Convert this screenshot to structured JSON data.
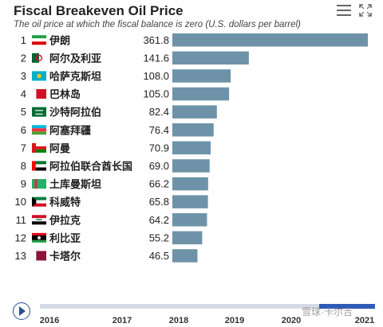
{
  "header": {
    "title": "Fiscal Breakeven Oil Price",
    "subtitle": "The oil price at which the fiscal balance is zero (U.S. dollars per barrel)"
  },
  "icons": {
    "menu": "hamburger-menu-icon",
    "expand": "fullscreen-expand-icon",
    "play": "play-icon"
  },
  "colors": {
    "bar": "#6e93a9",
    "accent": "#2f5bb8",
    "timeline_track": "#d5dbe6"
  },
  "timeline": {
    "years": [
      "2016",
      "2017",
      "2018",
      "2019",
      "2020",
      "2021"
    ],
    "selected_year": "2021"
  },
  "watermark": "雪球·卡尔吉",
  "chart_data": {
    "type": "bar",
    "orientation": "horizontal",
    "title": "Fiscal Breakeven Oil Price",
    "subtitle": "The oil price at which the fiscal balance is zero (U.S. dollars per barrel)",
    "ranks": [
      "1",
      "2",
      "3",
      "4",
      "5",
      "6",
      "7",
      "8",
      "9",
      "10",
      "11",
      "12",
      "13"
    ],
    "categories": [
      "伊朗",
      "阿尔及利亚",
      "哈萨克斯坦",
      "巴林岛",
      "沙特阿拉伯",
      "阿塞拜疆",
      "阿曼",
      "阿拉伯联合酋长国",
      "土库曼斯坦",
      "科威特",
      "伊拉克",
      "利比亚",
      "卡塔尔"
    ],
    "flags": [
      "iran-flag",
      "algeria-flag",
      "kazakhstan-flag",
      "bahrain-flag",
      "saudi-arabia-flag",
      "azerbaijan-flag",
      "oman-flag",
      "uae-flag",
      "turkmenistan-flag",
      "kuwait-flag",
      "iraq-flag",
      "libya-flag",
      "qatar-flag"
    ],
    "values": [
      361.8,
      141.6,
      108.0,
      105.0,
      82.4,
      76.4,
      70.9,
      69.0,
      66.2,
      65.8,
      64.2,
      55.2,
      46.5
    ],
    "value_labels": [
      "361.8",
      "141.6",
      "108.0",
      "105.0",
      "82.4",
      "76.4",
      "70.9",
      "69.0",
      "66.2",
      "65.8",
      "64.2",
      "55.2",
      "46.5"
    ],
    "xlim": [
      0,
      361.8
    ],
    "grid": false,
    "legend": "none"
  }
}
